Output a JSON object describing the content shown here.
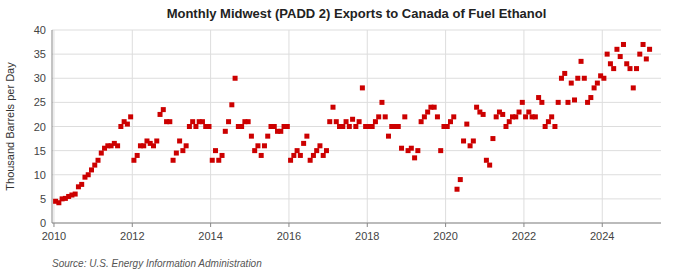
{
  "chart_data": {
    "type": "scatter",
    "title": "Monthly Midwest (PADD 2) Exports to Canada of Fuel Ethanol",
    "y_label": "Thousand Barrels per Day",
    "source": "Source: U.S. Energy Information Administration",
    "color": "#cc0000",
    "marker": "square",
    "grid": true,
    "xlim": [
      2009.95,
      2025.5
    ],
    "xticks": [
      2010,
      2012,
      2014,
      2016,
      2018,
      2020,
      2022,
      2024
    ],
    "ylim": [
      0,
      40
    ],
    "yticks": [
      0,
      5,
      10,
      15,
      20,
      25,
      30,
      35,
      40
    ],
    "x": [
      2010.0416667,
      2010.125,
      2010.2083333,
      2010.2916667,
      2010.375,
      2010.4583333,
      2010.5416667,
      2010.625,
      2010.7083333,
      2010.7916667,
      2010.875,
      2010.9583333,
      2011.0416667,
      2011.125,
      2011.2083333,
      2011.2916667,
      2011.375,
      2011.4583333,
      2011.5416667,
      2011.625,
      2011.7083333,
      2011.7916667,
      2011.875,
      2011.9583333,
      2012.0416667,
      2012.125,
      2012.2083333,
      2012.2916667,
      2012.375,
      2012.4583333,
      2012.5416667,
      2012.625,
      2012.7083333,
      2012.7916667,
      2012.875,
      2012.9583333,
      2013.0416667,
      2013.125,
      2013.2083333,
      2013.2916667,
      2013.375,
      2013.4583333,
      2013.5416667,
      2013.625,
      2013.7083333,
      2013.7916667,
      2013.875,
      2013.9583333,
      2014.0416667,
      2014.125,
      2014.2083333,
      2014.2916667,
      2014.375,
      2014.4583333,
      2014.5416667,
      2014.625,
      2014.7083333,
      2014.7916667,
      2014.875,
      2014.9583333,
      2015.0416667,
      2015.125,
      2015.2083333,
      2015.2916667,
      2015.375,
      2015.4583333,
      2015.5416667,
      2015.625,
      2015.7083333,
      2015.7916667,
      2015.875,
      2015.9583333,
      2016.0416667,
      2016.125,
      2016.2083333,
      2016.2916667,
      2016.375,
      2016.4583333,
      2016.5416667,
      2016.625,
      2016.7083333,
      2016.7916667,
      2016.875,
      2016.9583333,
      2017.0416667,
      2017.125,
      2017.2083333,
      2017.2916667,
      2017.375,
      2017.4583333,
      2017.5416667,
      2017.625,
      2017.7083333,
      2017.7916667,
      2017.875,
      2017.9583333,
      2018.0416667,
      2018.125,
      2018.2083333,
      2018.2916667,
      2018.375,
      2018.4583333,
      2018.5416667,
      2018.625,
      2018.7083333,
      2018.7916667,
      2018.875,
      2018.9583333,
      2019.0416667,
      2019.125,
      2019.2083333,
      2019.2916667,
      2019.375,
      2019.4583333,
      2019.5416667,
      2019.625,
      2019.7083333,
      2019.7916667,
      2019.875,
      2019.9583333,
      2020.0416667,
      2020.125,
      2020.2083333,
      2020.2916667,
      2020.375,
      2020.4583333,
      2020.5416667,
      2020.625,
      2020.7083333,
      2020.7916667,
      2020.875,
      2020.9583333,
      2021.0416667,
      2021.125,
      2021.2083333,
      2021.2916667,
      2021.375,
      2021.4583333,
      2021.5416667,
      2021.625,
      2021.7083333,
      2021.7916667,
      2021.875,
      2021.9583333,
      2022.0416667,
      2022.125,
      2022.2083333,
      2022.2916667,
      2022.375,
      2022.4583333,
      2022.5416667,
      2022.625,
      2022.7083333,
      2022.7916667,
      2022.875,
      2022.9583333,
      2023.0416667,
      2023.125,
      2023.2083333,
      2023.2916667,
      2023.375,
      2023.4583333,
      2023.5416667,
      2023.625,
      2023.7083333,
      2023.7916667,
      2023.875,
      2023.9583333,
      2024.0416667,
      2024.125,
      2024.2083333,
      2024.2916667,
      2024.375,
      2024.4583333,
      2024.5416667,
      2024.625,
      2024.7083333,
      2024.7916667,
      2024.875,
      2024.9583333,
      2025.0416667,
      2025.125,
      2025.2083333
    ],
    "values": [
      4.5,
      4.2,
      5.0,
      5.1,
      5.5,
      5.8,
      6.0,
      7.5,
      8.0,
      9.5,
      10.0,
      11.0,
      12.0,
      13.0,
      14.5,
      15.5,
      16.0,
      16.0,
      16.5,
      16.0,
      20.0,
      21.0,
      20.5,
      22.0,
      13.0,
      14.0,
      16.0,
      16.0,
      17.0,
      16.5,
      16.0,
      17.0,
      22.5,
      23.5,
      21.0,
      21.0,
      13.0,
      14.5,
      17.0,
      15.0,
      16.0,
      20.0,
      21.0,
      20.0,
      21.0,
      21.0,
      20.0,
      20.0,
      13.0,
      15.0,
      13.0,
      14.0,
      19.0,
      21.0,
      24.5,
      30.0,
      20.0,
      20.0,
      21.0,
      21.0,
      18.0,
      15.0,
      16.0,
      14.0,
      16.0,
      18.0,
      20.0,
      20.0,
      19.0,
      19.0,
      20.0,
      20.0,
      13.0,
      14.0,
      15.0,
      14.0,
      16.5,
      18.0,
      13.0,
      14.0,
      15.0,
      16.0,
      14.0,
      15.0,
      21.0,
      24.0,
      21.0,
      20.0,
      20.0,
      21.0,
      20.0,
      21.5,
      20.0,
      21.0,
      28.0,
      20.0,
      20.0,
      20.0,
      21.0,
      22.0,
      25.0,
      22.0,
      18.0,
      20.0,
      20.0,
      20.0,
      15.5,
      22.0,
      15.0,
      15.5,
      13.5,
      15.0,
      21.0,
      22.0,
      23.0,
      24.0,
      24.0,
      22.0,
      15.0,
      20.0,
      20.0,
      21.0,
      22.0,
      7.0,
      9.0,
      17.0,
      20.5,
      16.0,
      17.0,
      24.0,
      23.0,
      22.5,
      13.0,
      12.0,
      17.5,
      22.0,
      23.0,
      22.5,
      20.0,
      21.0,
      22.0,
      22.0,
      23.0,
      25.0,
      22.0,
      23.0,
      22.0,
      22.0,
      26.0,
      25.0,
      20.0,
      21.0,
      22.0,
      20.0,
      25.0,
      30.0,
      31.0,
      25.0,
      29.0,
      25.5,
      30.0,
      33.5,
      30.0,
      25.0,
      26.0,
      28.0,
      29.0,
      30.5,
      30.0,
      35.0,
      33.0,
      32.0,
      36.0,
      34.5,
      37.0,
      33.0,
      32.0,
      28.0,
      32.0,
      35.0,
      37.0,
      34.0,
      36.0
    ]
  }
}
